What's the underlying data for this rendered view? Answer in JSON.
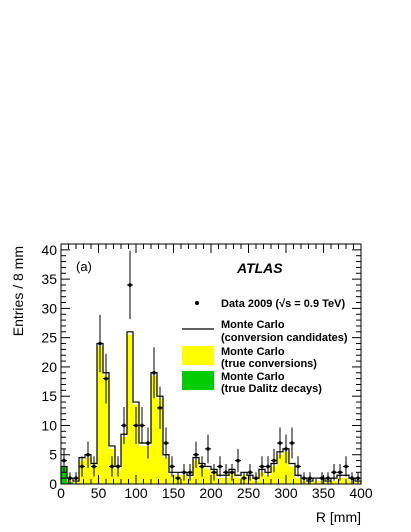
{
  "chart_data": {
    "type": "bar",
    "panel_label": "(a)",
    "experiment_label": "ATLAS",
    "xlabel": "R [mm]",
    "ylabel": "Entries / 8 mm",
    "xlim": [
      0,
      400
    ],
    "ylim": [
      0,
      41
    ],
    "bin_width": 8,
    "x_ticks": [
      "0",
      "50",
      "100",
      "150",
      "200",
      "250",
      "300",
      "350",
      "400"
    ],
    "y_ticks": [
      "0",
      "5",
      "10",
      "15",
      "20",
      "25",
      "30",
      "35",
      "40"
    ],
    "bin_edges": [
      0,
      8,
      16,
      24,
      32,
      40,
      48,
      56,
      64,
      72,
      80,
      88,
      96,
      104,
      112,
      120,
      128,
      136,
      144,
      152,
      160,
      168,
      176,
      184,
      192,
      200,
      208,
      216,
      224,
      232,
      240,
      248,
      256,
      264,
      272,
      280,
      288,
      296,
      304,
      312,
      320,
      328,
      336,
      344,
      352,
      360,
      368,
      376,
      384,
      392,
      400
    ],
    "legend": {
      "data": "Data 2009 (√s = 0.9 TeV)",
      "mc_line_1": "Monte Carlo",
      "mc_line_2": "(conversion candidates)",
      "mc_true_1": "Monte Carlo",
      "mc_true_2": "(true conversions)",
      "mc_dalitz_1": "Monte Carlo",
      "mc_dalitz_2": "(true Dalitz decays)"
    },
    "colors": {
      "true_conversions": "#ffff00",
      "dalitz": "#00cc00",
      "mc_line": "#000000",
      "data": "#000000"
    },
    "series": [
      {
        "name": "Monte Carlo (conversion candidates)",
        "style": "step-line",
        "values": [
          3,
          1,
          0.5,
          4.5,
          5,
          3.5,
          24,
          19,
          6.5,
          3,
          8.5,
          26,
          14,
          7,
          7,
          19,
          15,
          5,
          2,
          2,
          2,
          1.5,
          4.5,
          3.5,
          3,
          2.5,
          1.5,
          1.5,
          2.5,
          1.5,
          2,
          1.5,
          1,
          2.5,
          2,
          3.5,
          5.5,
          6,
          3.5,
          1.5,
          1,
          0.5,
          1,
          1,
          0.5,
          1,
          1.5,
          1.5,
          1,
          0.5
        ]
      },
      {
        "name": "Monte Carlo (true conversions)",
        "style": "filled",
        "values": [
          1,
          0.6,
          0.3,
          4,
          4.5,
          3,
          23.5,
          18.5,
          6,
          2.5,
          8,
          25.5,
          13.5,
          6.5,
          6.5,
          18.5,
          14.5,
          4.5,
          1.5,
          1.5,
          1.5,
          1,
          4,
          3,
          2.5,
          2,
          1,
          1,
          2,
          1,
          1.5,
          1,
          0.5,
          2,
          1.5,
          3,
          5,
          5.5,
          3,
          1,
          0.5,
          0.3,
          0.5,
          0.5,
          0.3,
          0.5,
          1,
          1,
          0.5,
          0.3
        ]
      },
      {
        "name": "Monte Carlo (true Dalitz decays)",
        "style": "filled",
        "values": [
          3,
          0.3,
          0.1,
          0.1,
          0.1,
          0.1,
          0.1,
          0.1,
          0.1,
          0.1,
          0,
          0,
          0,
          0,
          0,
          0,
          0,
          0,
          0,
          0,
          0,
          0,
          0,
          0,
          0,
          0,
          0,
          0,
          0,
          0,
          0,
          0,
          0,
          0,
          0,
          0,
          0,
          0,
          0,
          0,
          0,
          0,
          0,
          0,
          0,
          0,
          0,
          0,
          0,
          0
        ]
      },
      {
        "name": "Data 2009 (√s = 0.9 TeV)",
        "style": "points-with-errors",
        "x": [
          4,
          12,
          20,
          28,
          36,
          44,
          52,
          60,
          68,
          76,
          84,
          92,
          100,
          108,
          116,
          124,
          132,
          140,
          148,
          156,
          164,
          172,
          180,
          188,
          196,
          204,
          212,
          220,
          228,
          236,
          244,
          252,
          260,
          268,
          276,
          284,
          292,
          300,
          308,
          316,
          324,
          332,
          340,
          348,
          356,
          364,
          372,
          380,
          388,
          396
        ],
        "values": [
          4,
          1,
          1,
          3,
          5,
          3,
          24,
          18,
          3,
          3,
          10,
          34,
          10,
          10,
          7,
          19,
          13,
          7,
          3,
          1,
          2,
          2,
          5,
          3,
          6,
          2,
          3,
          2,
          2,
          4,
          1,
          2,
          1,
          3,
          3,
          4,
          7,
          6,
          7,
          3,
          1,
          1,
          0,
          1,
          1,
          2,
          2,
          3,
          1,
          1
        ]
      }
    ]
  }
}
